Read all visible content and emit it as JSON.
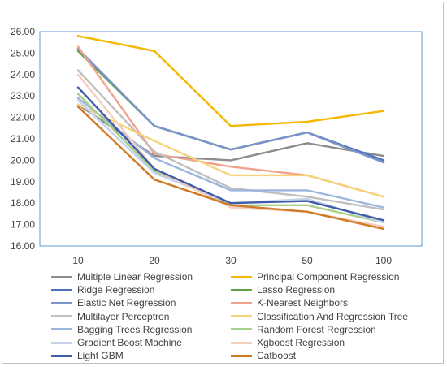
{
  "chart_data": {
    "type": "line",
    "categories": [
      "10",
      "20",
      "30",
      "50",
      "100"
    ],
    "ylim": [
      16.0,
      26.0
    ],
    "ytick_step": 1.0,
    "ytick_labels": [
      "16.00",
      "17.00",
      "18.00",
      "19.00",
      "20.00",
      "21.00",
      "22.00",
      "23.00",
      "24.00",
      "25.00",
      "26.00"
    ],
    "grid": false,
    "legend_position": "bottom",
    "series": [
      {
        "name": "Multiple Linear Regression",
        "color": "#8c8c8c",
        "values": [
          22.6,
          20.2,
          20.0,
          20.8,
          20.2
        ]
      },
      {
        "name": "Principal Component Regression",
        "color": "#f5b800",
        "values": [
          25.8,
          25.1,
          21.6,
          21.8,
          22.3
        ]
      },
      {
        "name": "Ridge Regression",
        "color": "#4a72c4",
        "values": [
          25.2,
          21.6,
          20.5,
          21.3,
          20.0
        ]
      },
      {
        "name": "Lasso Regression",
        "color": "#5da546",
        "values": [
          25.1,
          21.6,
          20.5,
          21.3,
          19.9
        ]
      },
      {
        "name": "Elastic Net Regression",
        "color": "#7d93cc",
        "values": [
          25.2,
          21.6,
          20.5,
          21.3,
          19.9
        ]
      },
      {
        "name": "K-Nearest Neighbors",
        "color": "#f0a28c",
        "values": [
          25.3,
          20.3,
          19.7,
          19.3,
          18.3
        ]
      },
      {
        "name": "Multilayer Perceptron",
        "color": "#bfbfbf",
        "values": [
          24.2,
          20.4,
          18.7,
          18.3,
          17.7
        ]
      },
      {
        "name": "Classification And Regression Tree",
        "color": "#f8d27a",
        "values": [
          22.6,
          20.9,
          19.3,
          19.3,
          18.3
        ]
      },
      {
        "name": "Bagging Trees Regression",
        "color": "#9cb5dd",
        "values": [
          22.9,
          20.1,
          18.6,
          18.6,
          17.8
        ]
      },
      {
        "name": "Random Forest Regression",
        "color": "#a8d08d",
        "values": [
          23.1,
          19.5,
          17.9,
          17.9,
          17.1
        ]
      },
      {
        "name": "Gradient Boost Machine",
        "color": "#c6d2ea",
        "values": [
          22.8,
          19.4,
          18.0,
          18.2,
          17.1
        ]
      },
      {
        "name": "Xgboost Regression",
        "color": "#f4cfbd",
        "values": [
          24.0,
          19.6,
          17.8,
          17.6,
          16.9
        ]
      },
      {
        "name": "Light GBM",
        "color": "#3f5ba9",
        "values": [
          23.4,
          19.6,
          18.0,
          18.1,
          17.2
        ]
      },
      {
        "name": "Catboost",
        "color": "#d07a28",
        "values": [
          22.5,
          19.1,
          17.9,
          17.6,
          16.8
        ]
      }
    ]
  }
}
